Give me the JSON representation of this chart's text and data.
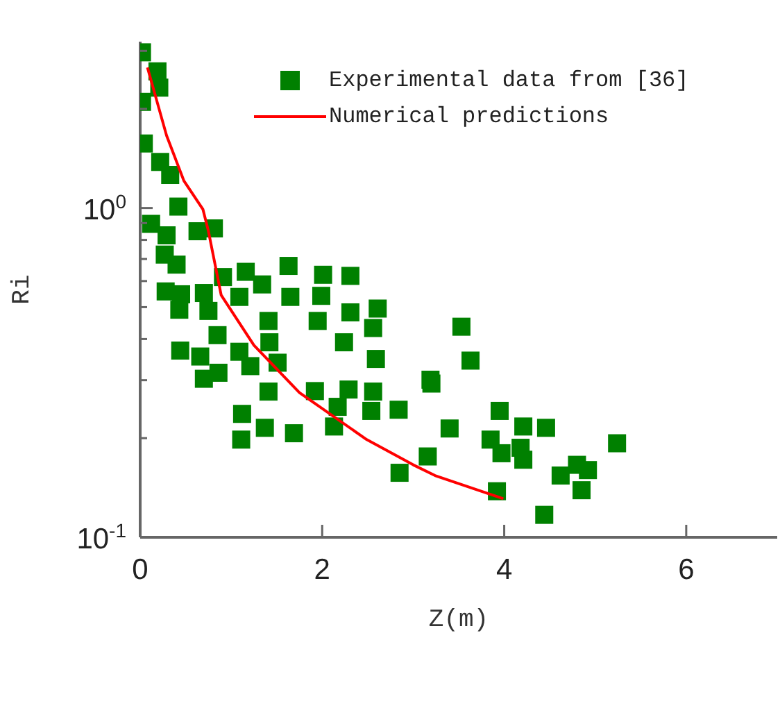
{
  "chart_data": {
    "type": "scatter",
    "xlabel": "Z(m)",
    "ylabel": "Ri",
    "log": "y",
    "xlim": [
      0,
      7
    ],
    "ylim": [
      0.1,
      3.2
    ],
    "xticks": [
      0,
      2,
      4,
      6
    ],
    "yticks": [
      {
        "value": 0.1,
        "label": "10$^{-1}$"
      },
      {
        "value": 0.2,
        "label": null
      },
      {
        "value": 0.3,
        "label": null
      },
      {
        "value": 0.4,
        "label": null
      },
      {
        "value": 0.5,
        "label": null
      },
      {
        "value": 0.6,
        "label": null
      },
      {
        "value": 0.7,
        "label": null
      },
      {
        "value": 0.8,
        "label": null
      },
      {
        "value": 0.9,
        "label": null
      },
      {
        "value": 1,
        "label": "10$^{0}$"
      },
      {
        "value": 2,
        "label": null
      },
      {
        "value": 3,
        "label": null
      }
    ],
    "grid": false,
    "legend": "top right",
    "series": [
      {
        "name": "Experimental data from [36]",
        "marker": "square",
        "color": "#008000",
        "x": [
          0.02,
          0.19,
          0.21,
          0.02,
          0.04,
          0.22,
          0.33,
          0.42,
          0.12,
          0.29,
          0.63,
          0.81,
          0.27,
          0.4,
          0.91,
          1.16,
          1.34,
          1.63,
          2.01,
          2.31,
          0.28,
          0.45,
          0.7,
          1.09,
          1.65,
          1.99,
          0.43,
          0.75,
          1.41,
          1.95,
          2.31,
          2.61,
          2.56,
          3.53,
          0.85,
          1.42,
          2.24,
          0.44,
          0.66,
          1.09,
          1.21,
          1.51,
          2.59,
          3.63,
          0.86,
          0.7,
          3.19,
          3.2,
          1.41,
          1.92,
          2.29,
          2.56,
          2.17,
          2.54,
          2.84,
          1.12,
          3.4,
          1.37,
          2.13,
          1.11,
          1.69,
          3.16,
          2.85,
          3.95,
          4.21,
          4.46,
          3.85,
          3.97,
          4.18,
          4.21,
          5.24,
          4.8,
          4.92,
          4.62,
          4.85,
          3.92,
          4.44
        ],
        "values": [
          2.97,
          2.6,
          2.32,
          2.1,
          1.57,
          1.38,
          1.26,
          1.01,
          0.895,
          0.826,
          0.85,
          0.867,
          0.722,
          0.673,
          0.617,
          0.64,
          0.586,
          0.667,
          0.627,
          0.622,
          0.558,
          0.547,
          0.552,
          0.537,
          0.537,
          0.541,
          0.491,
          0.487,
          0.454,
          0.454,
          0.482,
          0.495,
          0.432,
          0.436,
          0.411,
          0.391,
          0.391,
          0.369,
          0.354,
          0.366,
          0.331,
          0.339,
          0.348,
          0.344,
          0.316,
          0.303,
          0.301,
          0.293,
          0.277,
          0.278,
          0.281,
          0.277,
          0.249,
          0.242,
          0.244,
          0.237,
          0.214,
          0.215,
          0.217,
          0.198,
          0.207,
          0.176,
          0.157,
          0.242,
          0.217,
          0.215,
          0.198,
          0.18,
          0.187,
          0.172,
          0.193,
          0.166,
          0.16,
          0.154,
          0.139,
          0.138,
          0.117
        ]
      },
      {
        "name": "Numerical predictions",
        "type": "line",
        "marker": "none",
        "line_style": "solid",
        "color": "#ff0000",
        "x": [
          0.08,
          0.29,
          0.48,
          0.69,
          0.75,
          0.89,
          1.25,
          1.75,
          2.49,
          3.0,
          3.24,
          3.99
        ],
        "values": [
          2.67,
          1.66,
          1.21,
          0.99,
          0.85,
          0.544,
          0.383,
          0.275,
          0.198,
          0.166,
          0.154,
          0.131
        ]
      }
    ]
  }
}
